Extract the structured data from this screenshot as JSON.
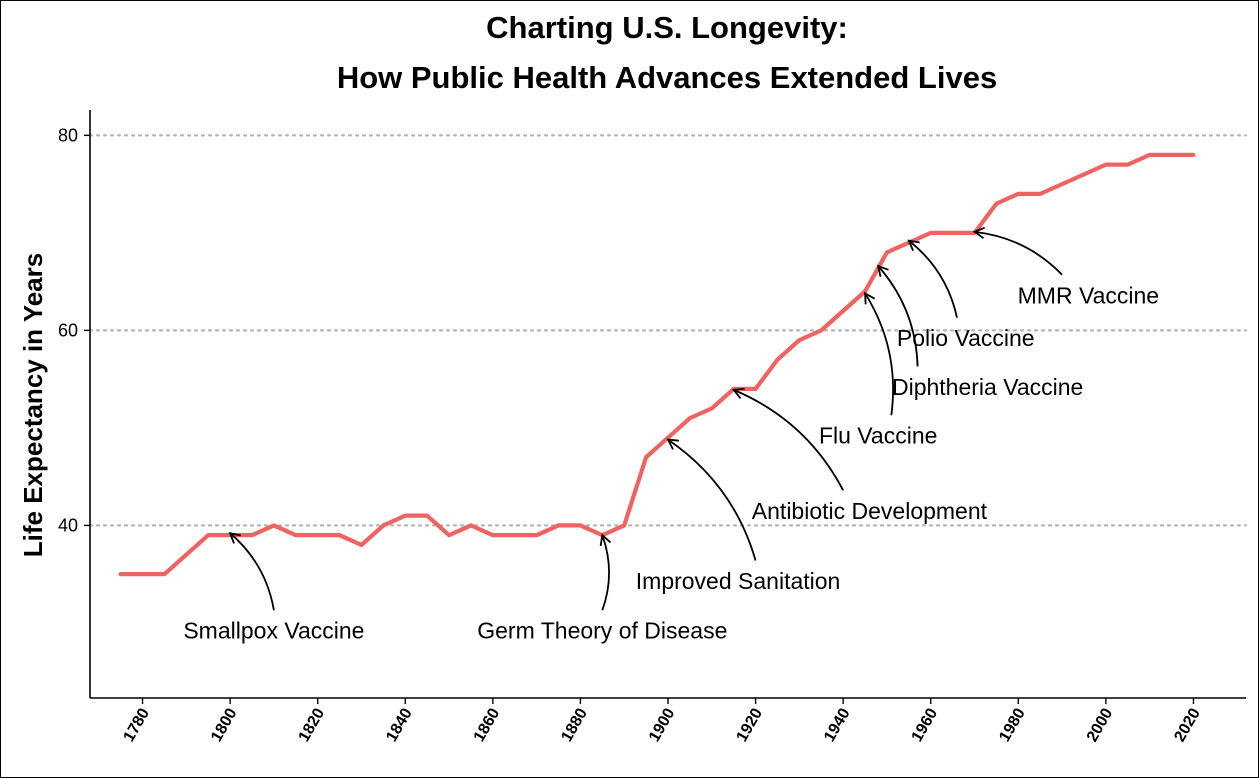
{
  "chart_data": {
    "type": "line",
    "title": [
      "Charting U.S. Longevity:",
      "How Public Health Advances Extended Lives"
    ],
    "xlabel": "",
    "ylabel": "Life Expectancy in Years",
    "xlim": [
      1768,
      2032
    ],
    "ylim": [
      22.3,
      82.6
    ],
    "x_ticks": [
      1780,
      1800,
      1820,
      1840,
      1860,
      1880,
      1900,
      1920,
      1940,
      1960,
      1980,
      2000,
      2020
    ],
    "y_ticks": [
      40,
      60,
      80
    ],
    "grid": "horizontal dotted at major y ticks",
    "line_color": "#ef6461",
    "series": [
      {
        "x": [
          1775,
          1780,
          1785,
          1790,
          1795,
          1800,
          1805,
          1810,
          1815,
          1820,
          1825,
          1830,
          1835,
          1840,
          1845,
          1850,
          1855,
          1860,
          1865,
          1870,
          1875,
          1880,
          1885,
          1890,
          1895,
          1900,
          1905,
          1910,
          1915,
          1920,
          1925,
          1930,
          1935,
          1940,
          1945,
          1950,
          1955,
          1960,
          1965,
          1970,
          1975,
          1980,
          1985,
          1990,
          1995,
          2000,
          2005,
          2010,
          2015,
          2020
        ],
        "y": [
          35,
          35,
          35,
          37,
          39,
          39,
          39,
          40,
          39,
          39,
          39,
          38,
          40,
          41,
          41,
          39,
          40,
          39,
          39,
          39,
          40,
          40,
          39,
          40,
          47,
          49,
          51,
          52,
          54,
          54,
          57,
          59,
          60,
          62,
          64,
          68,
          69,
          70,
          70,
          70,
          73,
          74,
          74,
          75,
          76,
          77,
          77,
          78,
          78,
          78
        ]
      }
    ],
    "annotations": [
      {
        "label": "Smallpox Vaccine",
        "text_x": 1810,
        "text_y": 29.2,
        "arrow_from": [
          1810,
          31.3
        ],
        "arrow_to": [
          1800,
          39.2
        ]
      },
      {
        "label": "Germ Theory of Disease",
        "text_x": 1885,
        "text_y": 29.2,
        "arrow_from": [
          1885,
          31.3
        ],
        "arrow_to": [
          1885,
          39.0
        ]
      },
      {
        "label": "Improved Sanitation",
        "text_x": 1916,
        "text_y": 34.3,
        "arrow_from": [
          1920,
          36.4
        ],
        "arrow_to": [
          1900,
          48.8
        ]
      },
      {
        "label": "Antibiotic Development",
        "text_x": 1946,
        "text_y": 41.5,
        "arrow_from": [
          1940,
          43.6
        ],
        "arrow_to": [
          1915,
          53.9
        ]
      },
      {
        "label": "Flu Vaccine",
        "text_x": 1948,
        "text_y": 49.2,
        "arrow_from": [
          1951,
          51.3
        ],
        "arrow_to": [
          1945,
          63.8
        ]
      },
      {
        "label": "Diphtheria Vaccine",
        "text_x": 1973,
        "text_y": 54.2,
        "arrow_from": [
          1957,
          56.3
        ],
        "arrow_to": [
          1948,
          66.6
        ]
      },
      {
        "label": "Polio Vaccine",
        "text_x": 1968,
        "text_y": 59.2,
        "arrow_from": [
          1966,
          61.3
        ],
        "arrow_to": [
          1955,
          69.2
        ]
      },
      {
        "label": "MMR Vaccine",
        "text_x": 1996,
        "text_y": 63.6,
        "arrow_from": [
          1990,
          65.7
        ],
        "arrow_to": [
          1970,
          70.1
        ]
      }
    ]
  }
}
